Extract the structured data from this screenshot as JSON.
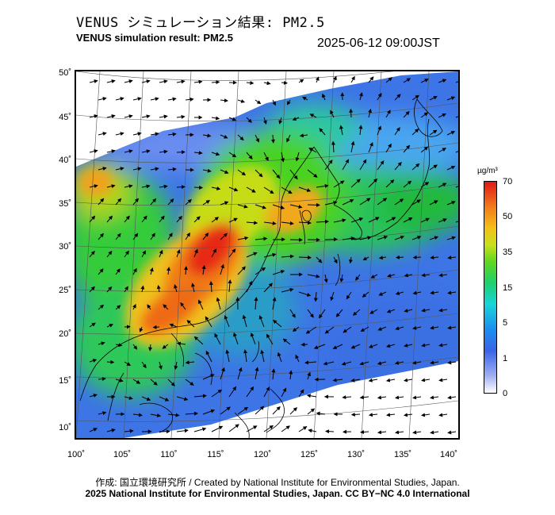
{
  "header": {
    "title_ja": "VENUS シミュレーション結果: PM2.5",
    "title_en": "VENUS simulation result: PM2.5",
    "timestamp": "2025-06-12 09:00JST"
  },
  "map": {
    "lat_labels": [
      "50˚",
      "45˚",
      "40˚",
      "35˚",
      "30˚",
      "25˚",
      "20˚",
      "15˚",
      "10˚"
    ],
    "lon_labels": [
      "100˚",
      "105˚",
      "110˚",
      "115˚",
      "120˚",
      "125˚",
      "130˚",
      "135˚",
      "140˚"
    ],
    "field": "PM2.5 concentration with wind vectors"
  },
  "colorbar": {
    "unit": "µg/m³",
    "ticks": [
      "70",
      "50",
      "35",
      "15",
      "5",
      "1",
      "0"
    ]
  },
  "footer": {
    "credit_line": "作成: 国立環境研究所 / Created by National Institute for Environmental Studies, Japan.",
    "license_line": "2025 National Institute for Environmental Studies, Japan. CC BY−NC 4.0 International"
  }
}
